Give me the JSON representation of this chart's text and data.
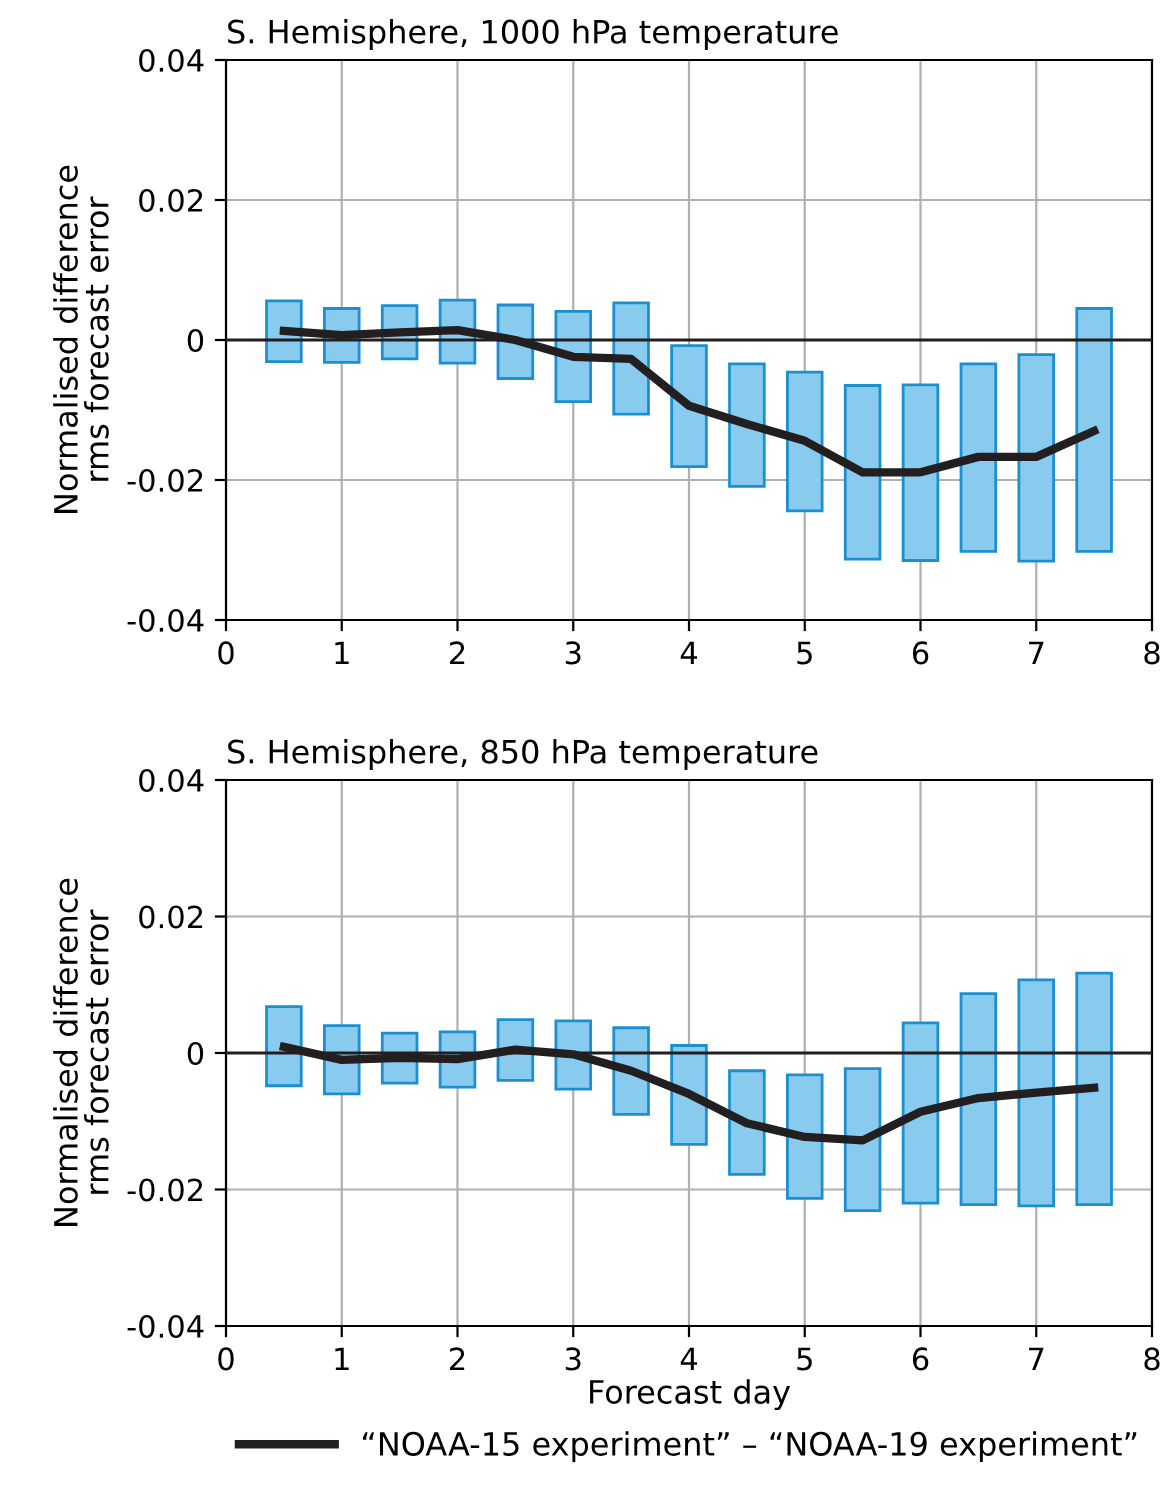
{
  "chart_data": [
    {
      "type": "bar",
      "title": "S. Hemisphere, 1000 hPa temperature",
      "ylabel": "Normalised difference\nrms forecast error",
      "x": [
        0.5,
        1,
        1.5,
        2,
        2.5,
        3,
        3.5,
        4,
        4.5,
        5,
        5.5,
        6,
        6.5,
        7,
        7.5
      ],
      "xlim": [
        0,
        8
      ],
      "xticks": [
        0,
        1,
        2,
        3,
        4,
        5,
        6,
        7,
        8
      ],
      "ylim": [
        -0.04,
        0.04
      ],
      "yticks": [
        -0.04,
        -0.02,
        0,
        0.02,
        0.04
      ],
      "grid": true,
      "legend": false,
      "ref_lines": [
        {
          "axis": "y",
          "value": 0,
          "color": "#231f20"
        }
      ],
      "series": [
        {
          "color": "#88cbee",
          "base": [
            -0.0031,
            -0.0032,
            -0.0027,
            -0.0033,
            -0.0055,
            -0.0088,
            -0.0106,
            -0.0181,
            -0.0209,
            -0.0244,
            -0.0313,
            -0.0315,
            -0.0302,
            -0.0316,
            -0.0302
          ],
          "values": [
            0.0087,
            0.0077,
            0.0076,
            0.009,
            0.0105,
            0.0129,
            0.0159,
            0.0173,
            0.0175,
            0.0198,
            0.0248,
            0.0251,
            0.0268,
            0.0295,
            0.0347
          ]
        },
        {
          "type": "line",
          "color": "#231f20",
          "values": [
            0.0013,
            0.0007,
            0.0011,
            0.0014,
            0,
            -0.0024,
            -0.0027,
            -0.0094,
            -0.012,
            -0.0144,
            -0.0189,
            -0.0189,
            -0.0167,
            -0.0167,
            -0.013
          ]
        }
      ]
    },
    {
      "type": "bar",
      "title": "S. Hemisphere, 850 hPa temperature",
      "ylabel": "Normalised difference\nrms forecast error",
      "xlabel": "Forecast day",
      "x": [
        0.5,
        1,
        1.5,
        2,
        2.5,
        3,
        3.5,
        4,
        4.5,
        5,
        5.5,
        6,
        6.5,
        7,
        7.5
      ],
      "xlim": [
        0,
        8
      ],
      "xticks": [
        0,
        1,
        2,
        3,
        4,
        5,
        6,
        7,
        8
      ],
      "ylim": [
        -0.04,
        0.04
      ],
      "yticks": [
        -0.04,
        -0.02,
        0,
        0.02,
        0.04
      ],
      "grid": true,
      "legend": "bottom",
      "ref_lines": [
        {
          "axis": "y",
          "value": 0,
          "color": "#231f20"
        }
      ],
      "series": [
        {
          "color": "#88cbee",
          "base": [
            -0.0048,
            -0.006,
            -0.0044,
            -0.005,
            -0.004,
            -0.0053,
            -0.009,
            -0.0134,
            -0.0178,
            -0.0213,
            -0.0231,
            -0.022,
            -0.0222,
            -0.0224,
            -0.0222
          ],
          "values": [
            0.0116,
            0.01,
            0.0073,
            0.0081,
            0.0089,
            0.01,
            0.0127,
            0.0145,
            0.0152,
            0.0181,
            0.0208,
            0.0264,
            0.0309,
            0.0331,
            0.0339
          ]
        },
        {
          "type": "line",
          "name": "“NOAA-15 experiment” – “NOAA-19 experiment”",
          "color": "#231f20",
          "values": [
            0.0009,
            -0.001,
            -0.0007,
            -0.0009,
            0.0005,
            -0.0002,
            -0.0026,
            -0.006,
            -0.0103,
            -0.0123,
            -0.0128,
            -0.0086,
            -0.0066,
            -0.0058,
            -0.0051
          ]
        }
      ]
    }
  ]
}
